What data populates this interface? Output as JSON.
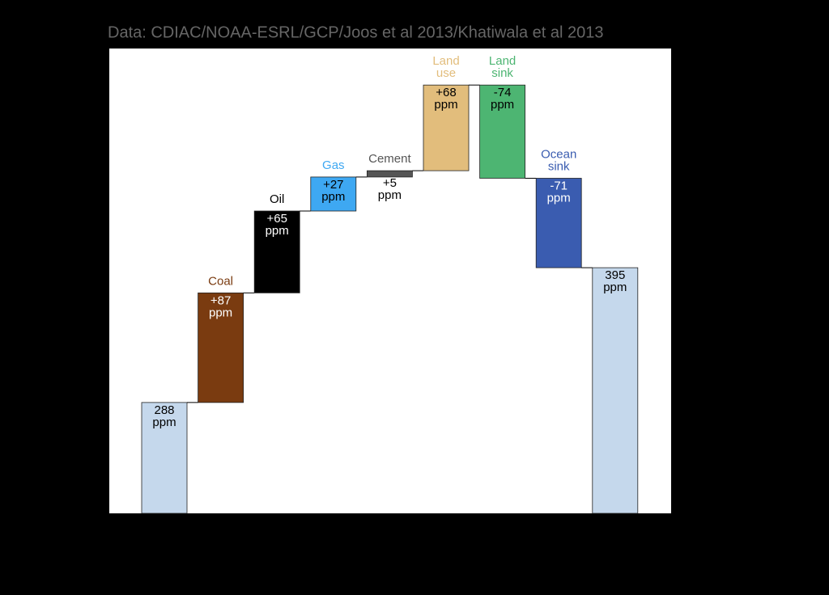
{
  "chart_data": {
    "type": "waterfall",
    "subtitle": "Data: CDIAC/NOAA-ESRL/GCP/Joos et al 2013/Khatiwala et al 2013",
    "categories": [
      null,
      "Coal",
      "Oil",
      "Gas",
      "Cement",
      "Land use",
      "Land sink",
      "Ocean sink",
      null
    ],
    "values": [
      288,
      87,
      65,
      27,
      5,
      68,
      -74,
      -71,
      395
    ],
    "value_labels": [
      "288 ppm",
      "+87 ppm",
      "+65 ppm",
      "+27 ppm",
      "+5 ppm",
      "+68 ppm",
      "-74 ppm",
      "-71 ppm",
      "395 ppm"
    ],
    "colors": [
      "#c5d8ec",
      "#7a3b10",
      "#000000",
      "#3ea8f2",
      "#555555",
      "#e2bd7c",
      "#4db572",
      "#3a5cb0",
      "#c5d8ec"
    ],
    "label_colors": [
      null,
      "#7a3b10",
      "#000000",
      "#3ea8f2",
      "#555555",
      "#e2bd7c",
      "#4db572",
      "#3a5cb0",
      null
    ],
    "ylim": [
      200,
      569
    ]
  }
}
